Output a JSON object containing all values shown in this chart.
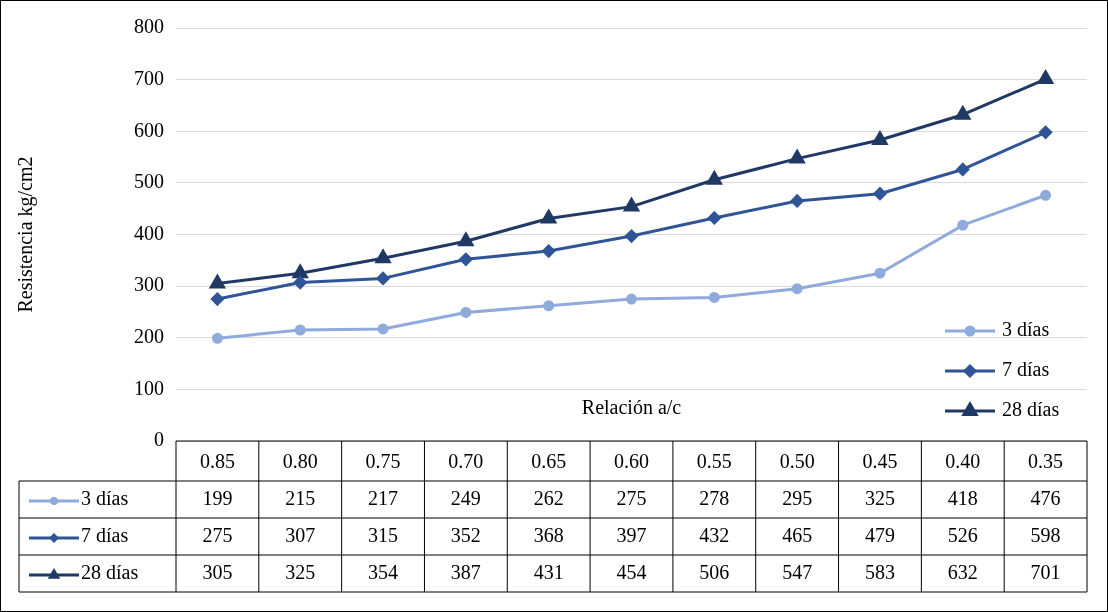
{
  "chart_data": {
    "type": "line",
    "xlabel": "Relación a/c",
    "ylabel": "Resistencia kg/cm2",
    "categories": [
      "0.85",
      "0.80",
      "0.75",
      "0.70",
      "0.65",
      "0.60",
      "0.55",
      "0.50",
      "0.45",
      "0.40",
      "0.35"
    ],
    "series": [
      {
        "name": "3 días",
        "color": "#8faadc",
        "marker": "circle",
        "values": [
          199,
          215,
          217,
          249,
          262,
          275,
          278,
          295,
          325,
          418,
          476
        ]
      },
      {
        "name": "7 días",
        "color": "#2f5597",
        "marker": "diamond",
        "values": [
          275,
          307,
          315,
          352,
          368,
          397,
          432,
          465,
          479,
          526,
          598
        ]
      },
      {
        "name": "28 días",
        "color": "#203864",
        "marker": "triangle",
        "values": [
          305,
          325,
          354,
          387,
          431,
          454,
          506,
          547,
          583,
          632,
          701
        ]
      }
    ],
    "ylim": [
      0,
      800
    ],
    "yticks": [
      0,
      100,
      200,
      300,
      400,
      500,
      600,
      700,
      800
    ],
    "grid": "y",
    "legend": "bottom right",
    "data_labels": true,
    "line_style": "solid"
  }
}
